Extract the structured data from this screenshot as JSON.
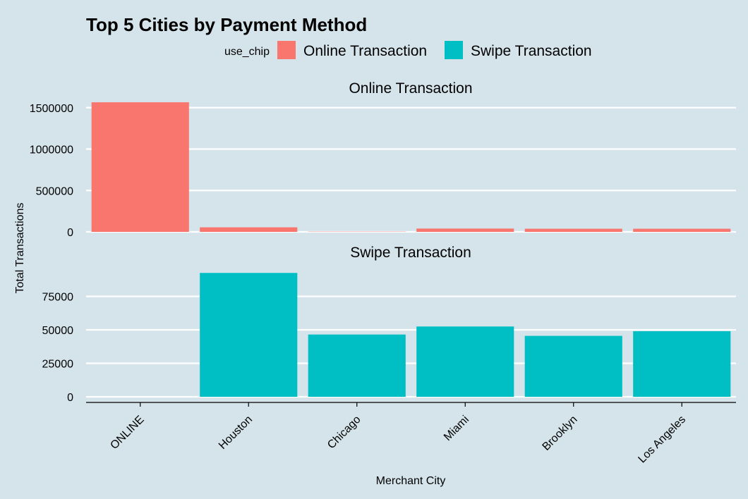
{
  "chart_data": {
    "type": "bar",
    "title": "Top 5 Cities by Payment Method",
    "xlabel": "Merchant City",
    "ylabel": "Total Transactions",
    "categories": [
      "ONLINE",
      "Houston",
      "Chicago",
      "Miami",
      "Brooklyn",
      "Los Angeles"
    ],
    "legend": {
      "title": "use_chip",
      "position": "top",
      "entries": [
        "Online Transaction",
        "Swipe Transaction"
      ]
    },
    "colors": {
      "Online Transaction": "#f8766d",
      "Swipe Transaction": "#00bfc4",
      "background": "#d5e4eb",
      "grid": "#ffffff"
    },
    "facets": [
      {
        "name": "Online Transaction",
        "ylim": [
          0,
          1600000
        ],
        "yticks": [
          0,
          500000,
          1000000,
          1500000
        ],
        "ytick_labels": [
          "0",
          "500000",
          "1000000",
          "1500000"
        ],
        "values": [
          1565000,
          55000,
          3000,
          40000,
          38000,
          38000
        ]
      },
      {
        "name": "Swipe Transaction",
        "ylim": [
          0,
          100000
        ],
        "yticks": [
          0,
          25000,
          50000,
          75000
        ],
        "ytick_labels": [
          "0",
          "25000",
          "50000",
          "75000"
        ],
        "values": [
          0,
          92500,
          46500,
          52500,
          45500,
          49000
        ]
      }
    ]
  }
}
